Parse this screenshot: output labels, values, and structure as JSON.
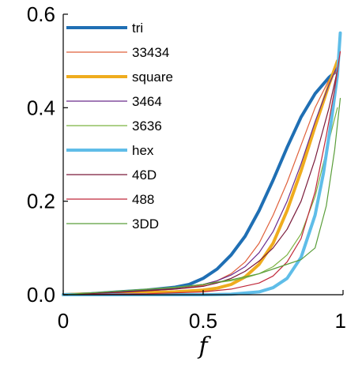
{
  "chart_data": {
    "type": "line",
    "title": "",
    "xlabel": "f",
    "ylabel": "",
    "xlim": [
      0,
      1
    ],
    "ylim": [
      0,
      0.6
    ],
    "xticks": [
      0,
      0.5,
      1
    ],
    "xtick_labels": [
      "0",
      "0.5",
      "1"
    ],
    "yticks": [
      0,
      0.2,
      0.4,
      0.6
    ],
    "ytick_labels": [
      "0.0",
      "0.2",
      "0.4",
      "0.6"
    ],
    "grid": false,
    "legend_position": "top-left",
    "series": [
      {
        "name": "tri",
        "color": "#1f6fb4",
        "width": "thick",
        "points": [
          [
            0,
            0
          ],
          [
            0.1,
            0.002
          ],
          [
            0.2,
            0.006
          ],
          [
            0.3,
            0.01
          ],
          [
            0.4,
            0.016
          ],
          [
            0.45,
            0.022
          ],
          [
            0.5,
            0.035
          ],
          [
            0.55,
            0.055
          ],
          [
            0.6,
            0.085
          ],
          [
            0.65,
            0.125
          ],
          [
            0.7,
            0.18
          ],
          [
            0.75,
            0.245
          ],
          [
            0.8,
            0.315
          ],
          [
            0.85,
            0.38
          ],
          [
            0.9,
            0.43
          ],
          [
            0.95,
            0.465
          ],
          [
            0.98,
            0.48
          ]
        ]
      },
      {
        "name": "33434",
        "color": "#e0603a",
        "width": "thin",
        "points": [
          [
            0,
            0
          ],
          [
            0.2,
            0.005
          ],
          [
            0.4,
            0.012
          ],
          [
            0.5,
            0.02
          ],
          [
            0.55,
            0.03
          ],
          [
            0.6,
            0.045
          ],
          [
            0.65,
            0.07
          ],
          [
            0.7,
            0.11
          ],
          [
            0.75,
            0.17
          ],
          [
            0.8,
            0.24
          ],
          [
            0.85,
            0.32
          ],
          [
            0.9,
            0.4
          ],
          [
            0.95,
            0.46
          ],
          [
            0.98,
            0.48
          ]
        ]
      },
      {
        "name": "square",
        "color": "#efac1e",
        "width": "thick",
        "points": [
          [
            0,
            0
          ],
          [
            0.2,
            0.003
          ],
          [
            0.4,
            0.006
          ],
          [
            0.5,
            0.01
          ],
          [
            0.55,
            0.014
          ],
          [
            0.6,
            0.022
          ],
          [
            0.65,
            0.038
          ],
          [
            0.7,
            0.065
          ],
          [
            0.75,
            0.11
          ],
          [
            0.8,
            0.18
          ],
          [
            0.85,
            0.265
          ],
          [
            0.9,
            0.36
          ],
          [
            0.95,
            0.45
          ],
          [
            0.98,
            0.5
          ]
        ]
      },
      {
        "name": "3464",
        "color": "#6a2a8c",
        "width": "thin",
        "points": [
          [
            0,
            0
          ],
          [
            0.2,
            0.006
          ],
          [
            0.4,
            0.014
          ],
          [
            0.5,
            0.022
          ],
          [
            0.55,
            0.03
          ],
          [
            0.6,
            0.042
          ],
          [
            0.65,
            0.06
          ],
          [
            0.7,
            0.09
          ],
          [
            0.75,
            0.135
          ],
          [
            0.8,
            0.2
          ],
          [
            0.85,
            0.28
          ],
          [
            0.9,
            0.37
          ],
          [
            0.95,
            0.45
          ],
          [
            0.98,
            0.49
          ]
        ]
      },
      {
        "name": "3636",
        "color": "#7cb342",
        "width": "thin",
        "points": [
          [
            0,
            0
          ],
          [
            0.2,
            0.008
          ],
          [
            0.4,
            0.016
          ],
          [
            0.5,
            0.022
          ],
          [
            0.6,
            0.03
          ],
          [
            0.65,
            0.036
          ],
          [
            0.7,
            0.045
          ],
          [
            0.75,
            0.06
          ],
          [
            0.8,
            0.085
          ],
          [
            0.85,
            0.13
          ],
          [
            0.9,
            0.21
          ],
          [
            0.95,
            0.33
          ],
          [
            0.98,
            0.4
          ]
        ]
      },
      {
        "name": "hex",
        "color": "#5fbde8",
        "width": "thick",
        "points": [
          [
            0,
            0
          ],
          [
            0.3,
            0.0
          ],
          [
            0.5,
            0.0
          ],
          [
            0.6,
            0.001
          ],
          [
            0.7,
            0.006
          ],
          [
            0.75,
            0.015
          ],
          [
            0.8,
            0.035
          ],
          [
            0.85,
            0.08
          ],
          [
            0.9,
            0.17
          ],
          [
            0.93,
            0.26
          ],
          [
            0.96,
            0.38
          ],
          [
            0.98,
            0.47
          ],
          [
            0.99,
            0.56
          ]
        ]
      },
      {
        "name": "46D",
        "color": "#7a1a3a",
        "width": "thin",
        "points": [
          [
            0,
            0
          ],
          [
            0.2,
            0.005
          ],
          [
            0.4,
            0.012
          ],
          [
            0.5,
            0.018
          ],
          [
            0.55,
            0.025
          ],
          [
            0.6,
            0.035
          ],
          [
            0.65,
            0.05
          ],
          [
            0.7,
            0.072
          ],
          [
            0.75,
            0.1
          ],
          [
            0.8,
            0.14
          ],
          [
            0.85,
            0.2
          ],
          [
            0.9,
            0.29
          ],
          [
            0.95,
            0.4
          ],
          [
            0.98,
            0.48
          ]
        ]
      },
      {
        "name": "488",
        "color": "#c0283a",
        "width": "thin",
        "points": [
          [
            0,
            0
          ],
          [
            0.3,
            0.002
          ],
          [
            0.5,
            0.006
          ],
          [
            0.6,
            0.012
          ],
          [
            0.7,
            0.025
          ],
          [
            0.75,
            0.04
          ],
          [
            0.8,
            0.07
          ],
          [
            0.85,
            0.12
          ],
          [
            0.9,
            0.22
          ],
          [
            0.94,
            0.34
          ],
          [
            0.97,
            0.44
          ],
          [
            0.99,
            0.52
          ]
        ]
      },
      {
        "name": "3DD",
        "color": "#5a9e3a",
        "width": "thin",
        "points": [
          [
            0,
            0
          ],
          [
            0.2,
            0.008
          ],
          [
            0.4,
            0.015
          ],
          [
            0.5,
            0.022
          ],
          [
            0.6,
            0.032
          ],
          [
            0.7,
            0.045
          ],
          [
            0.75,
            0.055
          ],
          [
            0.8,
            0.065
          ],
          [
            0.85,
            0.075
          ],
          [
            0.9,
            0.1
          ],
          [
            0.94,
            0.19
          ],
          [
            0.97,
            0.31
          ],
          [
            0.99,
            0.42
          ]
        ]
      }
    ]
  }
}
